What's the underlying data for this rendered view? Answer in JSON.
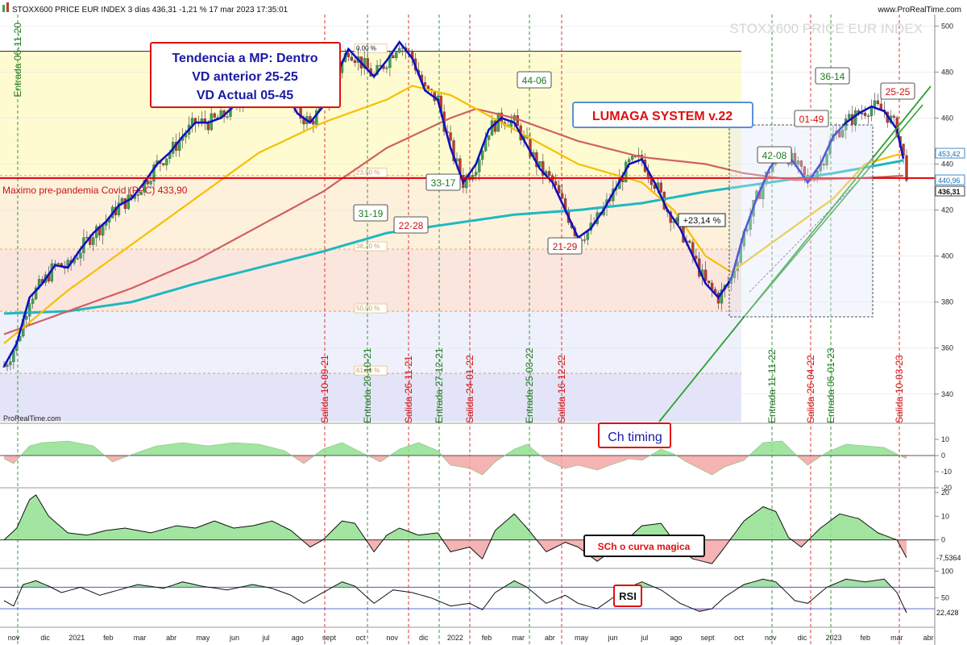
{
  "header": {
    "title": "STOXX600 PRICE EUR INDEX 3 días 436,31 -1,21 % 17 mar 2023 17:35:01",
    "site": "www.ProRealTime.com",
    "watermark": "STOXX600 PRICE EUR INDEX",
    "credit": "ProRealTime.com"
  },
  "annotations": {
    "trend_box": [
      "Tendencia a MP: Dentro",
      "VD anterior 25-25",
      "VD Actual 05-45"
    ],
    "system_box": "LUMAGA SYSTEM v.22",
    "covid_label": "Maximo pre-pandemia Covid (PPC) 433,90",
    "gain_label": "+23,14 %",
    "score_labels": [
      {
        "text": "31-19",
        "color": "green"
      },
      {
        "text": "22-28",
        "color": "red"
      },
      {
        "text": "33-17",
        "color": "green"
      },
      {
        "text": "44-06",
        "color": "green"
      },
      {
        "text": "21-29",
        "color": "red"
      },
      {
        "text": "42-08",
        "color": "green"
      },
      {
        "text": "01-49",
        "color": "red"
      },
      {
        "text": "36-14",
        "color": "green"
      },
      {
        "text": "25-25",
        "color": "red"
      }
    ],
    "signals": [
      {
        "text": "Entrada 06-11-20",
        "color": "green"
      },
      {
        "text": "Salida 10-09-21",
        "color": "red"
      },
      {
        "text": "Entrada 20-10-21",
        "color": "green"
      },
      {
        "text": "Salida 26-11-21",
        "color": "red"
      },
      {
        "text": "Entrada 27-12-21",
        "color": "green"
      },
      {
        "text": "Salida 24-01-22",
        "color": "red"
      },
      {
        "text": "Entrada 25-03-22",
        "color": "green"
      },
      {
        "text": "Salida 16-12-22",
        "color": "red"
      },
      {
        "text": "Entrada 11-11-22",
        "color": "green"
      },
      {
        "text": "Salida 26-04-22",
        "color": "red"
      },
      {
        "text": "Entrada 06-01-23",
        "color": "green"
      },
      {
        "text": "Salida 10-03-23",
        "color": "red"
      }
    ],
    "fib_labels": [
      "0,00 %",
      "23,60 %",
      "38,20 %",
      "50,00 %",
      "61,80 %"
    ]
  },
  "price_badges": [
    {
      "text": "453,42",
      "color": "#1b6fb5"
    },
    {
      "text": "440,96",
      "color": "#1b6fb5"
    },
    {
      "text": "436,31",
      "color": "#111111"
    }
  ],
  "colors": {
    "up": "#34a853",
    "down": "#c0392b",
    "smooth": "#1010c0",
    "ma_fast": "#f5c000",
    "ma_mid": "#d16060",
    "ma_slow": "#1fb8c0",
    "covid": "#e00000"
  },
  "panels": [
    {
      "title": "Ch timing",
      "ylim": [
        -20,
        20
      ],
      "ticks": [
        "10",
        "0",
        "-10",
        "-20"
      ]
    },
    {
      "title": "SCh o curva magica",
      "ylim": [
        -12,
        22
      ],
      "ticks": [
        "20",
        "10",
        "0"
      ],
      "last_value": "-7,5364"
    },
    {
      "title": "RSI",
      "ylim": [
        0,
        105
      ],
      "ticks": [
        "100",
        "50"
      ],
      "last_value": "22,428"
    }
  ],
  "chart_data": {
    "type": "candlestick",
    "title": "STOXX600 PRICE EUR INDEX",
    "ylim": [
      328,
      505
    ],
    "yticks": [
      "500",
      "480",
      "460",
      "440",
      "420",
      "400",
      "380",
      "360",
      "340"
    ],
    "covid_level": 433.9,
    "fib_levels": [
      489,
      435,
      403,
      376,
      349
    ],
    "x_labels": [
      "nov",
      "dic",
      "2021",
      "feb",
      "mar",
      "abr",
      "may",
      "jun",
      "jul",
      "ago",
      "sept",
      "oct",
      "nov",
      "dic",
      "2022",
      "feb",
      "mar",
      "abr",
      "may",
      "jun",
      "jul",
      "ago",
      "sept",
      "oct",
      "nov",
      "dic",
      "2023",
      "feb",
      "mar",
      "abr"
    ],
    "price_path": [
      [
        0,
        352
      ],
      [
        4,
        362
      ],
      [
        8,
        382
      ],
      [
        12,
        388
      ],
      [
        16,
        396
      ],
      [
        20,
        395
      ],
      [
        24,
        403
      ],
      [
        28,
        410
      ],
      [
        32,
        415
      ],
      [
        36,
        422
      ],
      [
        40,
        425
      ],
      [
        44,
        432
      ],
      [
        48,
        440
      ],
      [
        52,
        445
      ],
      [
        56,
        452
      ],
      [
        60,
        458
      ],
      [
        64,
        458
      ],
      [
        68,
        460
      ],
      [
        72,
        465
      ],
      [
        76,
        470
      ],
      [
        80,
        473
      ],
      [
        84,
        475
      ],
      [
        88,
        472
      ],
      [
        92,
        462
      ],
      [
        96,
        458
      ],
      [
        100,
        465
      ],
      [
        104,
        478
      ],
      [
        108,
        490
      ],
      [
        112,
        484
      ],
      [
        116,
        478
      ],
      [
        120,
        485
      ],
      [
        124,
        493
      ],
      [
        128,
        486
      ],
      [
        132,
        472
      ],
      [
        136,
        468
      ],
      [
        140,
        447
      ],
      [
        144,
        432
      ],
      [
        148,
        440
      ],
      [
        152,
        455
      ],
      [
        156,
        460
      ],
      [
        160,
        458
      ],
      [
        164,
        448
      ],
      [
        168,
        438
      ],
      [
        172,
        432
      ],
      [
        176,
        420
      ],
      [
        180,
        408
      ],
      [
        184,
        412
      ],
      [
        188,
        420
      ],
      [
        192,
        430
      ],
      [
        196,
        440
      ],
      [
        200,
        442
      ],
      [
        204,
        432
      ],
      [
        208,
        420
      ],
      [
        212,
        412
      ],
      [
        216,
        400
      ],
      [
        220,
        388
      ],
      [
        224,
        382
      ],
      [
        228,
        390
      ],
      [
        232,
        410
      ],
      [
        236,
        425
      ],
      [
        240,
        438
      ],
      [
        244,
        446
      ],
      [
        248,
        440
      ],
      [
        252,
        432
      ],
      [
        256,
        440
      ],
      [
        260,
        452
      ],
      [
        264,
        458
      ],
      [
        268,
        462
      ],
      [
        272,
        465
      ],
      [
        276,
        463
      ],
      [
        280,
        455
      ],
      [
        283,
        436
      ]
    ],
    "ma_fast": [
      [
        0,
        362
      ],
      [
        20,
        385
      ],
      [
        40,
        405
      ],
      [
        60,
        425
      ],
      [
        80,
        445
      ],
      [
        100,
        458
      ],
      [
        120,
        468
      ],
      [
        128,
        474
      ],
      [
        140,
        470
      ],
      [
        160,
        455
      ],
      [
        180,
        440
      ],
      [
        200,
        432
      ],
      [
        210,
        420
      ],
      [
        220,
        400
      ],
      [
        228,
        393
      ],
      [
        240,
        405
      ],
      [
        260,
        425
      ],
      [
        270,
        440
      ],
      [
        280,
        444
      ]
    ],
    "ma_mid": [
      [
        0,
        366
      ],
      [
        20,
        376
      ],
      [
        40,
        386
      ],
      [
        60,
        398
      ],
      [
        80,
        413
      ],
      [
        100,
        428
      ],
      [
        120,
        447
      ],
      [
        140,
        460
      ],
      [
        148,
        464
      ],
      [
        160,
        460
      ],
      [
        180,
        450
      ],
      [
        200,
        443
      ],
      [
        220,
        440
      ],
      [
        232,
        436
      ],
      [
        248,
        433
      ],
      [
        270,
        434
      ],
      [
        283,
        435
      ]
    ],
    "ma_slow": [
      [
        0,
        375
      ],
      [
        20,
        376
      ],
      [
        40,
        380
      ],
      [
        60,
        388
      ],
      [
        80,
        395
      ],
      [
        100,
        402
      ],
      [
        120,
        410
      ],
      [
        140,
        414
      ],
      [
        160,
        418
      ],
      [
        180,
        420
      ],
      [
        200,
        423
      ],
      [
        220,
        428
      ],
      [
        240,
        432
      ],
      [
        260,
        436
      ],
      [
        280,
        441
      ],
      [
        283,
        442
      ]
    ],
    "osc1": [
      [
        0,
        -2
      ],
      [
        3,
        -5
      ],
      [
        8,
        6
      ],
      [
        12,
        8
      ],
      [
        20,
        9
      ],
      [
        28,
        6
      ],
      [
        34,
        -4
      ],
      [
        42,
        2
      ],
      [
        48,
        6
      ],
      [
        56,
        8
      ],
      [
        64,
        6
      ],
      [
        72,
        8
      ],
      [
        80,
        7
      ],
      [
        88,
        3
      ],
      [
        94,
        -5
      ],
      [
        100,
        4
      ],
      [
        106,
        8
      ],
      [
        112,
        2
      ],
      [
        118,
        -4
      ],
      [
        124,
        4
      ],
      [
        130,
        8
      ],
      [
        136,
        3
      ],
      [
        140,
        -6
      ],
      [
        146,
        -8
      ],
      [
        150,
        -12
      ],
      [
        154,
        -4
      ],
      [
        160,
        4
      ],
      [
        164,
        7
      ],
      [
        170,
        -3
      ],
      [
        176,
        -8
      ],
      [
        180,
        -6
      ],
      [
        186,
        -9
      ],
      [
        190,
        -6
      ],
      [
        196,
        -2
      ],
      [
        200,
        -3
      ],
      [
        206,
        4
      ],
      [
        210,
        1
      ],
      [
        214,
        -4
      ],
      [
        218,
        -8
      ],
      [
        222,
        -12
      ],
      [
        226,
        -7
      ],
      [
        232,
        -3
      ],
      [
        238,
        8
      ],
      [
        244,
        9
      ],
      [
        248,
        1
      ],
      [
        252,
        -6
      ],
      [
        258,
        2
      ],
      [
        264,
        7
      ],
      [
        270,
        6
      ],
      [
        276,
        5
      ],
      [
        280,
        1
      ],
      [
        283,
        -2
      ]
    ],
    "osc2": [
      [
        0,
        0
      ],
      [
        4,
        5
      ],
      [
        8,
        17
      ],
      [
        10,
        19
      ],
      [
        14,
        10
      ],
      [
        20,
        3
      ],
      [
        26,
        2
      ],
      [
        32,
        4
      ],
      [
        38,
        5
      ],
      [
        46,
        3
      ],
      [
        54,
        6
      ],
      [
        60,
        5
      ],
      [
        66,
        8
      ],
      [
        72,
        5
      ],
      [
        78,
        6
      ],
      [
        84,
        8
      ],
      [
        90,
        4
      ],
      [
        96,
        -3
      ],
      [
        100,
        0
      ],
      [
        106,
        8
      ],
      [
        110,
        7
      ],
      [
        116,
        -5
      ],
      [
        120,
        2
      ],
      [
        124,
        5
      ],
      [
        130,
        2
      ],
      [
        136,
        3
      ],
      [
        140,
        -5
      ],
      [
        146,
        -3
      ],
      [
        150,
        -8
      ],
      [
        154,
        4
      ],
      [
        160,
        11
      ],
      [
        164,
        5
      ],
      [
        170,
        -5
      ],
      [
        176,
        -1
      ],
      [
        180,
        -3
      ],
      [
        186,
        -9
      ],
      [
        190,
        -5
      ],
      [
        196,
        1
      ],
      [
        200,
        6
      ],
      [
        206,
        7
      ],
      [
        212,
        -4
      ],
      [
        216,
        -8
      ],
      [
        222,
        -10
      ],
      [
        226,
        -3
      ],
      [
        232,
        8
      ],
      [
        238,
        14
      ],
      [
        242,
        12
      ],
      [
        246,
        1
      ],
      [
        250,
        -3
      ],
      [
        256,
        5
      ],
      [
        262,
        11
      ],
      [
        268,
        9
      ],
      [
        274,
        3
      ],
      [
        280,
        0
      ],
      [
        283,
        -7.5
      ]
    ],
    "rsi": [
      [
        0,
        45
      ],
      [
        3,
        35
      ],
      [
        6,
        75
      ],
      [
        10,
        82
      ],
      [
        14,
        72
      ],
      [
        18,
        60
      ],
      [
        24,
        70
      ],
      [
        30,
        55
      ],
      [
        36,
        65
      ],
      [
        42,
        75
      ],
      [
        50,
        68
      ],
      [
        56,
        80
      ],
      [
        62,
        72
      ],
      [
        70,
        65
      ],
      [
        78,
        75
      ],
      [
        84,
        68
      ],
      [
        90,
        55
      ],
      [
        94,
        40
      ],
      [
        100,
        60
      ],
      [
        106,
        80
      ],
      [
        110,
        72
      ],
      [
        116,
        40
      ],
      [
        122,
        65
      ],
      [
        128,
        60
      ],
      [
        134,
        50
      ],
      [
        140,
        35
      ],
      [
        146,
        40
      ],
      [
        150,
        28
      ],
      [
        154,
        60
      ],
      [
        160,
        82
      ],
      [
        164,
        70
      ],
      [
        170,
        40
      ],
      [
        176,
        55
      ],
      [
        180,
        40
      ],
      [
        186,
        30
      ],
      [
        192,
        55
      ],
      [
        196,
        70
      ],
      [
        200,
        80
      ],
      [
        206,
        65
      ],
      [
        212,
        40
      ],
      [
        218,
        25
      ],
      [
        222,
        30
      ],
      [
        226,
        52
      ],
      [
        232,
        75
      ],
      [
        238,
        85
      ],
      [
        242,
        80
      ],
      [
        248,
        45
      ],
      [
        252,
        40
      ],
      [
        258,
        70
      ],
      [
        264,
        85
      ],
      [
        270,
        80
      ],
      [
        276,
        85
      ],
      [
        280,
        60
      ],
      [
        283,
        22.4
      ]
    ]
  }
}
